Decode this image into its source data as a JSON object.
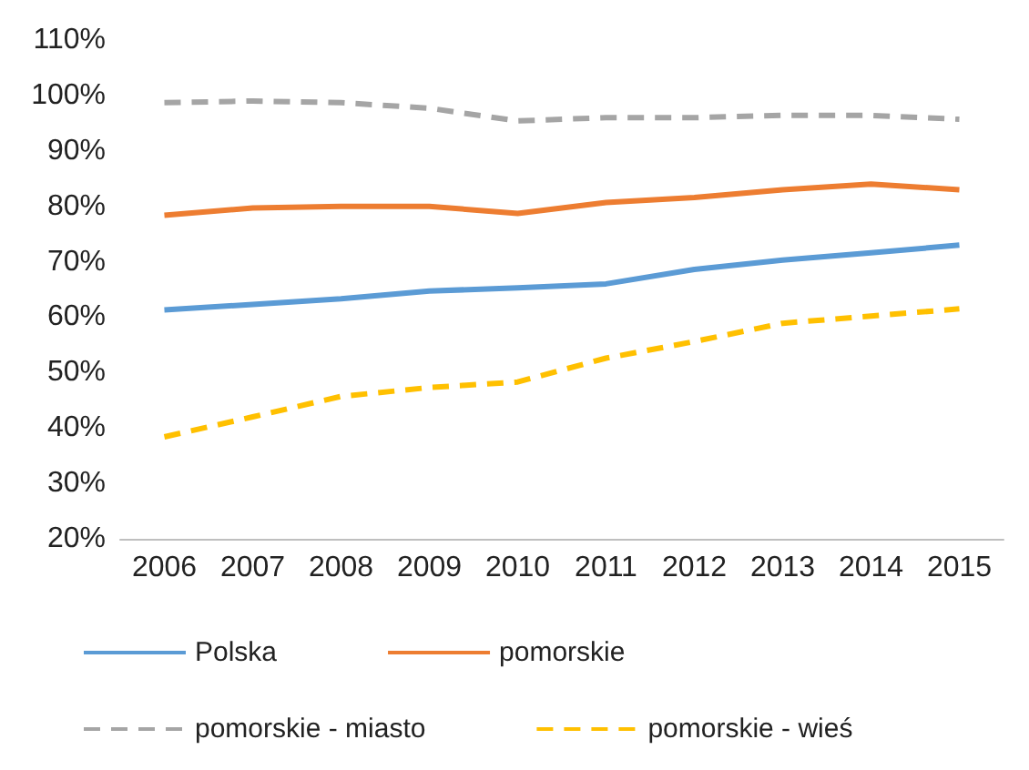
{
  "chart_data": {
    "type": "line",
    "categories": [
      "2006",
      "2007",
      "2008",
      "2009",
      "2010",
      "2011",
      "2012",
      "2013",
      "2014",
      "2015"
    ],
    "series": [
      {
        "name": "Polska",
        "color": "#5b9bd5",
        "line_style": "solid",
        "values": [
          61.3,
          62.3,
          63.3,
          64.7,
          65.3,
          66,
          68.6,
          70.3,
          71.6,
          73
        ]
      },
      {
        "name": "pomorskie",
        "color": "#ed7d31",
        "line_style": "solid",
        "values": [
          78.4,
          79.7,
          80,
          80,
          78.7,
          80.7,
          81.6,
          83,
          84,
          83
        ]
      },
      {
        "name": "pomorskie - miasto",
        "color": "#a5a5a5",
        "line_style": "dashed",
        "values": [
          98.7,
          99,
          98.7,
          97.7,
          95.4,
          96,
          96,
          96.4,
          96.4,
          95.7
        ]
      },
      {
        "name": "pomorskie - wieś",
        "color": "#ffc000",
        "line_style": "dashed",
        "values": [
          38.4,
          42,
          45.7,
          47.3,
          48.3,
          52.6,
          55.6,
          58.9,
          60.2,
          61.5
        ]
      }
    ],
    "ylim": [
      20,
      110
    ],
    "yticks": [
      {
        "value": 20,
        "label": "20%"
      },
      {
        "value": 30,
        "label": "30%"
      },
      {
        "value": 40,
        "label": "40%"
      },
      {
        "value": 50,
        "label": "50%"
      },
      {
        "value": 60,
        "label": "60%"
      },
      {
        "value": 70,
        "label": "70%"
      },
      {
        "value": 80,
        "label": "80%"
      },
      {
        "value": 90,
        "label": "90%"
      },
      {
        "value": 100,
        "label": "100%"
      },
      {
        "value": 110,
        "label": "110%"
      }
    ],
    "grid": false,
    "legend": "bottom",
    "marker": "none"
  }
}
